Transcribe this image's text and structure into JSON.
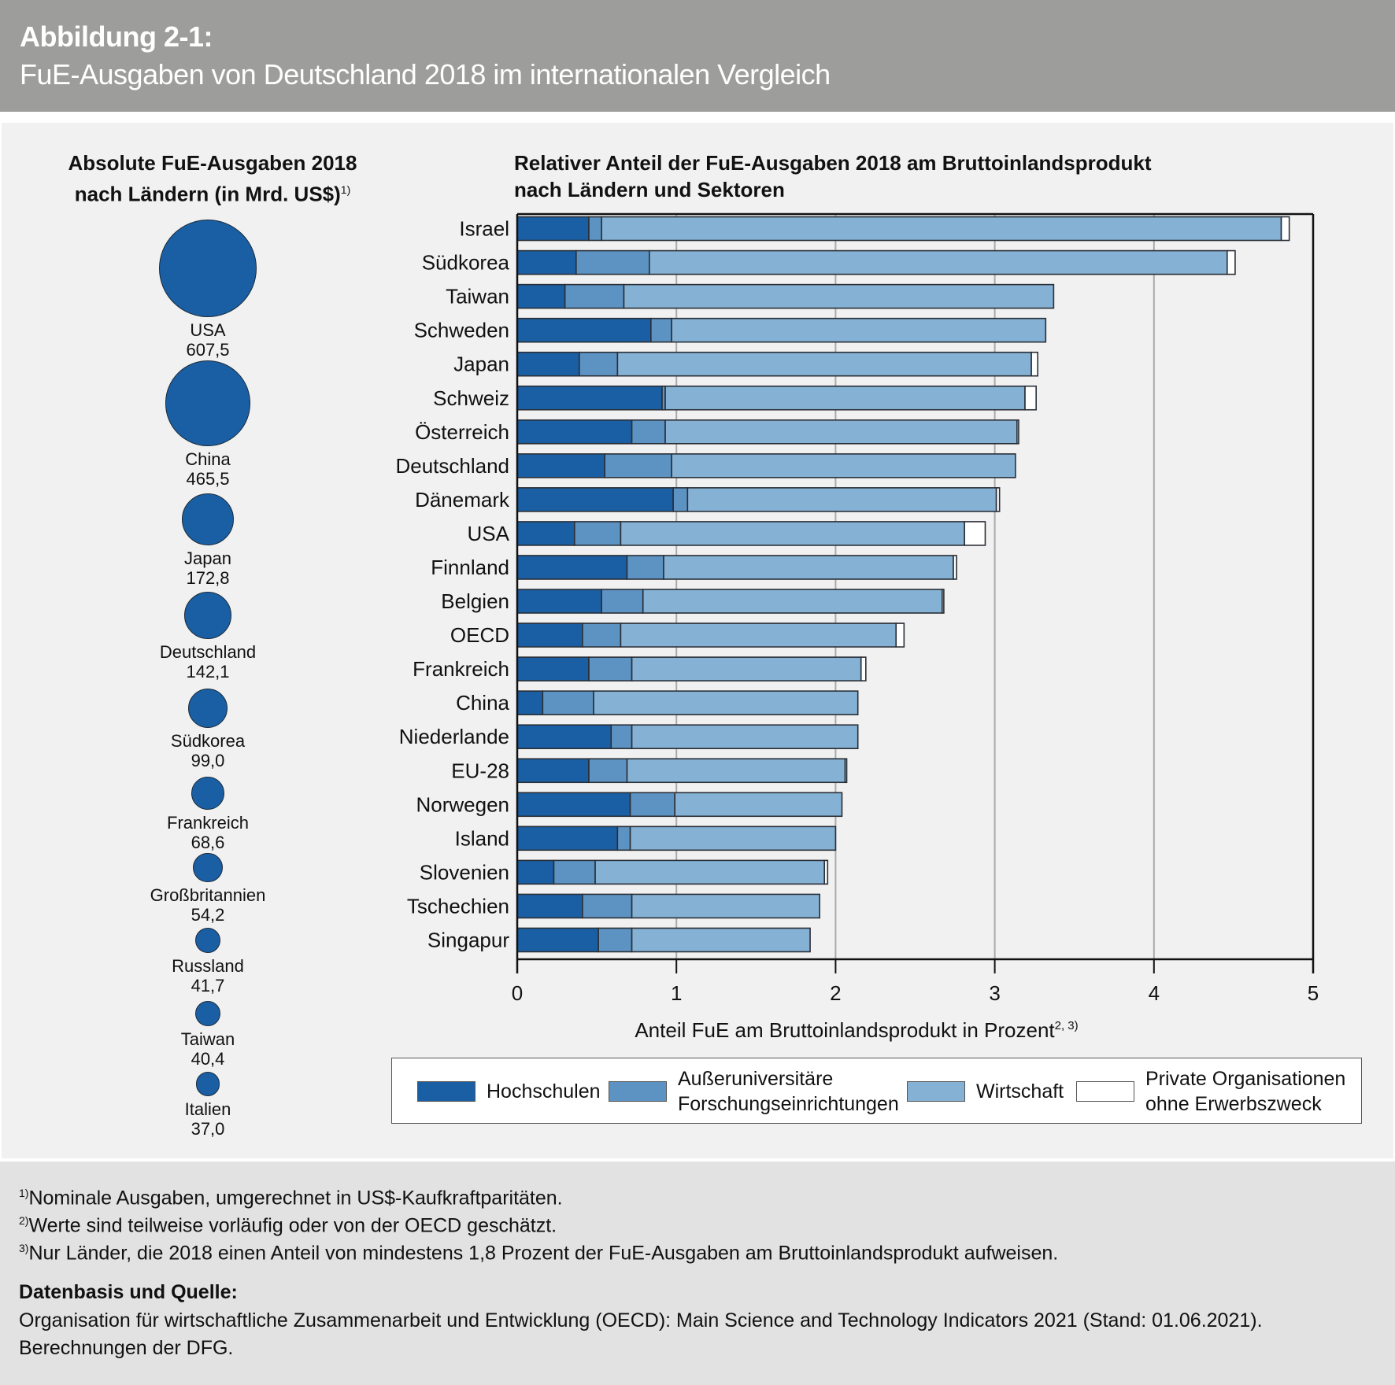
{
  "header": {
    "figure_label": "Abbildung 2-1:",
    "title": "FuE-Ausgaben von Deutschland 2018 im internationalen Vergleich"
  },
  "left_panel": {
    "title_line1": "Absolute FuE-Ausgaben 2018",
    "title_line2": "nach Ländern (in Mrd. US$)",
    "title_footnote": "1)",
    "bubbles": [
      {
        "country": "USA",
        "value": "607,5",
        "num": 607.5
      },
      {
        "country": "China",
        "value": "465,5",
        "num": 465.5
      },
      {
        "country": "Japan",
        "value": "172,8",
        "num": 172.8
      },
      {
        "country": "Deutschland",
        "value": "142,1",
        "num": 142.1
      },
      {
        "country": "Südkorea",
        "value": "99,0",
        "num": 99.0
      },
      {
        "country": "Frankreich",
        "value": "68,6",
        "num": 68.6
      },
      {
        "country": "Großbritannien",
        "value": "54,2",
        "num": 54.2
      },
      {
        "country": "Russland",
        "value": "41,7",
        "num": 41.7
      },
      {
        "country": "Taiwan",
        "value": "40,4",
        "num": 40.4
      },
      {
        "country": "Italien",
        "value": "37,0",
        "num": 37.0
      }
    ]
  },
  "chart_data": {
    "type": "bar",
    "orientation": "horizontal",
    "stacked": true,
    "title": "Relativer Anteil der FuE-Ausgaben 2018 am Bruttoinlandsprodukt nach Ländern und Sektoren",
    "title_line1": "Relativer Anteil der FuE-Ausgaben 2018 am Bruttoinlandsprodukt",
    "title_line2": "nach Ländern und Sektoren",
    "xlabel": "Anteil FuE am Bruttoinlandsprodukt in Prozent",
    "xlabel_footnote": "2, 3)",
    "ylabel": "",
    "xlim": [
      0,
      5
    ],
    "xticks": [
      "0",
      "1",
      "2",
      "3",
      "4",
      "5"
    ],
    "grid": true,
    "legend_position": "bottom",
    "categories": [
      "Israel",
      "Südkorea",
      "Taiwan",
      "Schweden",
      "Japan",
      "Schweiz",
      "Österreich",
      "Deutschland",
      "Dänemark",
      "USA",
      "Finnland",
      "Belgien",
      "OECD",
      "Frankreich",
      "China",
      "Niederlande",
      "EU-28",
      "Norwegen",
      "Island",
      "Slovenien",
      "Tschechien",
      "Singapur"
    ],
    "series": [
      {
        "name": "Hochschulen",
        "color": "#1a5fa3",
        "values": [
          0.45,
          0.37,
          0.3,
          0.84,
          0.39,
          0.91,
          0.72,
          0.55,
          0.98,
          0.36,
          0.69,
          0.53,
          0.41,
          0.45,
          0.16,
          0.59,
          0.45,
          0.71,
          0.63,
          0.23,
          0.41,
          0.51
        ]
      },
      {
        "name": "Außeruniversitäre Forschungseinrichtungen",
        "color": "#5d93c2",
        "values": [
          0.08,
          0.46,
          0.37,
          0.13,
          0.24,
          0.02,
          0.21,
          0.42,
          0.09,
          0.29,
          0.23,
          0.26,
          0.24,
          0.27,
          0.32,
          0.13,
          0.24,
          0.28,
          0.08,
          0.26,
          0.31,
          0.21
        ]
      },
      {
        "name": "Wirtschaft",
        "color": "#84b1d4",
        "values": [
          4.27,
          3.63,
          2.7,
          2.35,
          2.6,
          2.26,
          2.21,
          2.16,
          1.94,
          2.16,
          1.82,
          1.88,
          1.73,
          1.44,
          1.66,
          1.42,
          1.37,
          1.05,
          1.29,
          1.44,
          1.18,
          1.12
        ]
      },
      {
        "name": "Private Organisationen ohne Erwerbszweck",
        "color": "#ffffff",
        "values": [
          0.05,
          0.05,
          0.0,
          0.0,
          0.04,
          0.07,
          0.01,
          0.0,
          0.02,
          0.13,
          0.02,
          0.01,
          0.05,
          0.03,
          0.0,
          0.0,
          0.01,
          0.0,
          0.0,
          0.02,
          0.0,
          0.0
        ]
      }
    ]
  },
  "legend": {
    "items": [
      {
        "label_line1": "Hochschulen",
        "label_line2": ""
      },
      {
        "label_line1": "Außeruniversitäre",
        "label_line2": "Forschungseinrichtungen"
      },
      {
        "label_line1": "Wirtschaft",
        "label_line2": ""
      },
      {
        "label_line1": "Private Organisationen",
        "label_line2": "ohne Erwerbszweck"
      }
    ]
  },
  "footnotes": [
    {
      "mark": "1)",
      "text": "Nominale Ausgaben, umgerechnet in US$-Kaufkraftparitäten."
    },
    {
      "mark": "2)",
      "text": "Werte sind teilweise vorläufig oder von der OECD geschätzt."
    },
    {
      "mark": "3)",
      "text": "Nur Länder, die 2018 einen Anteil von mindestens 1,8 Prozent der FuE-Ausgaben am Bruttoinlandsprodukt aufweisen."
    }
  ],
  "source": {
    "title": "Datenbasis und Quelle:",
    "line1": "Organisation für wirtschaftliche Zusammenarbeit und Entwicklung (OECD): Main Science and Technology Indicators 2021 (Stand: 01.06.2021).",
    "line2": "Berechnungen der DFG."
  }
}
